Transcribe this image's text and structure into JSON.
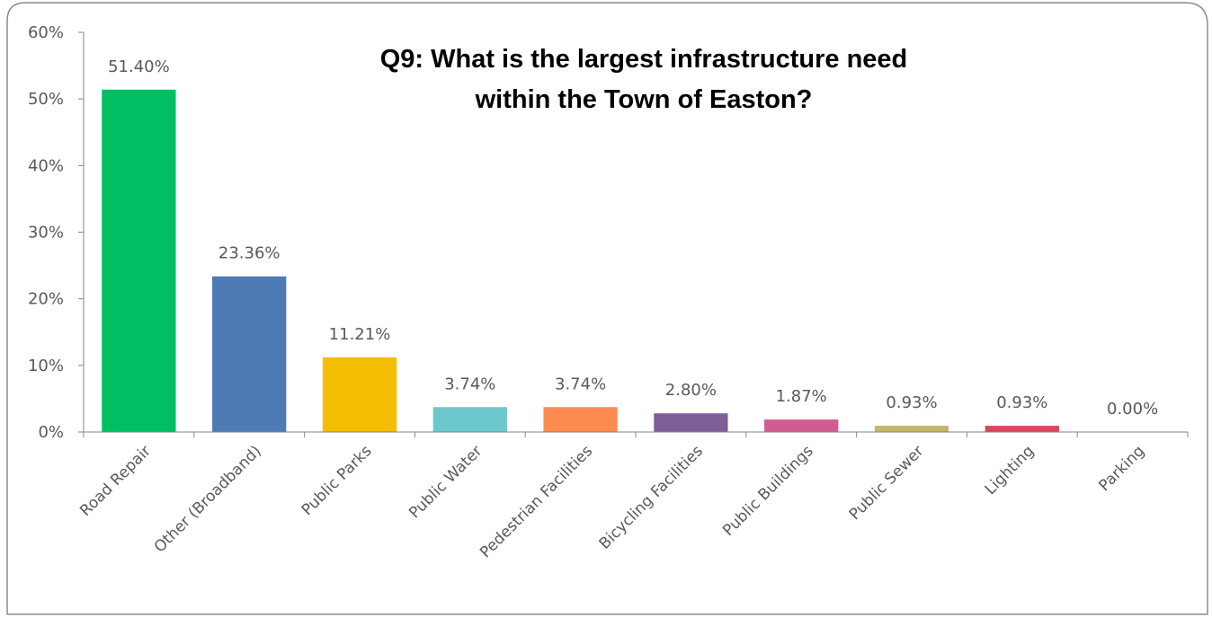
{
  "chart_data": {
    "type": "bar",
    "title_lines": [
      "Q9: What is the largest infrastructure need",
      "within the Town of Easton?"
    ],
    "categories": [
      "Road Repair",
      "Other (Broadband)",
      "Public Parks",
      "Public Water",
      "Pedestrian Facilities",
      "Bicycling Facilities",
      "Public Buildings",
      "Public Sewer",
      "Lighting",
      "Parking"
    ],
    "values": [
      51.4,
      23.36,
      11.21,
      3.74,
      3.74,
      2.8,
      1.87,
      0.93,
      0.93,
      0.0
    ],
    "data_labels": [
      "51.40%",
      "23.36%",
      "11.21%",
      "3.74%",
      "3.74%",
      "2.80%",
      "1.87%",
      "0.93%",
      "0.93%",
      "0.00%"
    ],
    "colors": [
      "#00BF63",
      "#4E7AB5",
      "#F5BE00",
      "#6CC8CC",
      "#FE8B50",
      "#7E5E95",
      "#D35B93",
      "#C3B66F",
      "#D9475A",
      "#C0C0C0"
    ],
    "ylim": [
      0,
      60
    ],
    "yticks": [
      0,
      10,
      20,
      30,
      40,
      50,
      60
    ],
    "ytick_labels": [
      "0%",
      "10%",
      "20%",
      "30%",
      "40%",
      "50%",
      "60%"
    ],
    "xlabel": "",
    "ylabel": "",
    "grid": false,
    "legend": "none"
  }
}
